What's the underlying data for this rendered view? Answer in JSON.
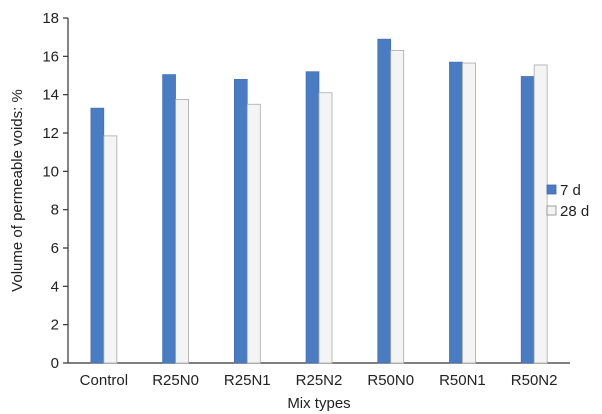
{
  "chart_data": {
    "type": "bar",
    "title": "",
    "xlabel": "Mix types",
    "ylabel": "Volume of permeable voids: %",
    "ylim": [
      0,
      18
    ],
    "yticks": [
      0,
      2,
      4,
      6,
      8,
      10,
      12,
      14,
      16,
      18
    ],
    "grid": false,
    "legend_position": "right",
    "categories": [
      "Control",
      "R25N0",
      "R25N1",
      "R25N2",
      "R50N0",
      "R50N1",
      "R50N2"
    ],
    "series": [
      {
        "name": "7 d",
        "color": "#4a7cc4",
        "values": [
          13.3,
          15.05,
          14.8,
          15.2,
          16.9,
          15.7,
          14.95
        ]
      },
      {
        "name": "28 d",
        "color": "#f4f4f4",
        "values": [
          11.85,
          13.75,
          13.5,
          14.1,
          16.3,
          15.65,
          15.55
        ]
      }
    ]
  }
}
